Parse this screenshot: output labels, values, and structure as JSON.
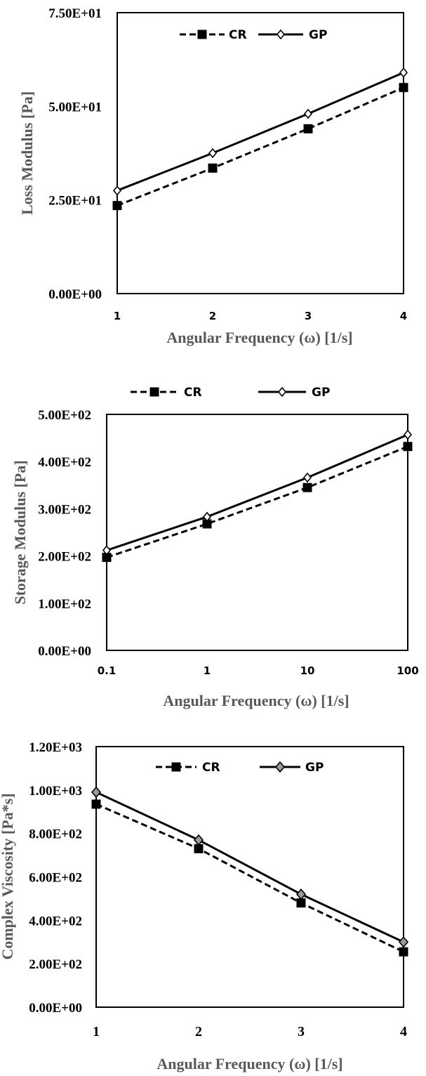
{
  "chart_data": [
    {
      "type": "line",
      "x": [
        1,
        2,
        3,
        4
      ],
      "xlabel": "Angular Frequency (ω) [1/s]",
      "ylabel": "Loss Modulus  [Pa]",
      "xlim": [
        1,
        4
      ],
      "ylim": [
        0,
        75
      ],
      "yticks": [
        "0.00E+00",
        "2.50E+01",
        "5.00E+01",
        "7.50E+01"
      ],
      "ytick_values": [
        0,
        25,
        50,
        75
      ],
      "xticks": [
        "1",
        "2",
        "3",
        "4"
      ],
      "grid": false,
      "legend_position": "top-center",
      "series": [
        {
          "name": "CR",
          "values": [
            23.5,
            33.5,
            44.0,
            55.0
          ],
          "style": "dashed",
          "marker": "square",
          "color": "#000000"
        },
        {
          "name": "GP",
          "values": [
            27.5,
            37.5,
            48.0,
            59.0
          ],
          "style": "solid",
          "marker": "diamond-open",
          "color": "#000000"
        }
      ]
    },
    {
      "type": "line",
      "x": [
        0.1,
        1,
        10,
        100
      ],
      "xscale": "log",
      "xlabel": "Angular Frequency (ω) [1/s]",
      "ylabel": "Storage Modulus [Pa]",
      "xlim": [
        0.1,
        100
      ],
      "ylim": [
        0,
        500
      ],
      "yticks": [
        "0.00E+00",
        "1.00E+02",
        "2.00E+02",
        "3.00E+02",
        "4.00E+02",
        "5.00E+02"
      ],
      "ytick_values": [
        0,
        100,
        200,
        300,
        400,
        500
      ],
      "xticks": [
        "0.1",
        "1",
        "10",
        "100"
      ],
      "grid": false,
      "legend_position": "top-outside",
      "series": [
        {
          "name": "CR",
          "values": [
            197,
            268,
            345,
            432
          ],
          "style": "dashed",
          "marker": "square",
          "color": "#000000"
        },
        {
          "name": "GP",
          "values": [
            212,
            283,
            366,
            457
          ],
          "style": "solid",
          "marker": "diamond-open",
          "color": "#000000"
        }
      ]
    },
    {
      "type": "line",
      "x": [
        1,
        2,
        3,
        4
      ],
      "xlabel": "Angular Frequency (ω) [1/s]",
      "ylabel": "Complex Viscosity  [Pa*s]",
      "xlim": [
        1,
        4
      ],
      "ylim": [
        0,
        1200
      ],
      "yticks": [
        "0.00E+00",
        "2.00E+02",
        "4.00E+02",
        "6.00E+02",
        "8.00E+02",
        "1.00E+03",
        "1.20E+03"
      ],
      "ytick_values": [
        0,
        200,
        400,
        600,
        800,
        1000,
        1200
      ],
      "xticks": [
        "1",
        "2",
        "3",
        "4"
      ],
      "grid": false,
      "legend_position": "top-center",
      "series": [
        {
          "name": "CR",
          "values": [
            935,
            730,
            480,
            255
          ],
          "style": "dashed",
          "marker": "square",
          "color": "#000000"
        },
        {
          "name": "GP",
          "values": [
            990,
            770,
            520,
            300
          ],
          "style": "solid",
          "marker": "diamond-gray",
          "color": "#000000"
        }
      ]
    }
  ]
}
